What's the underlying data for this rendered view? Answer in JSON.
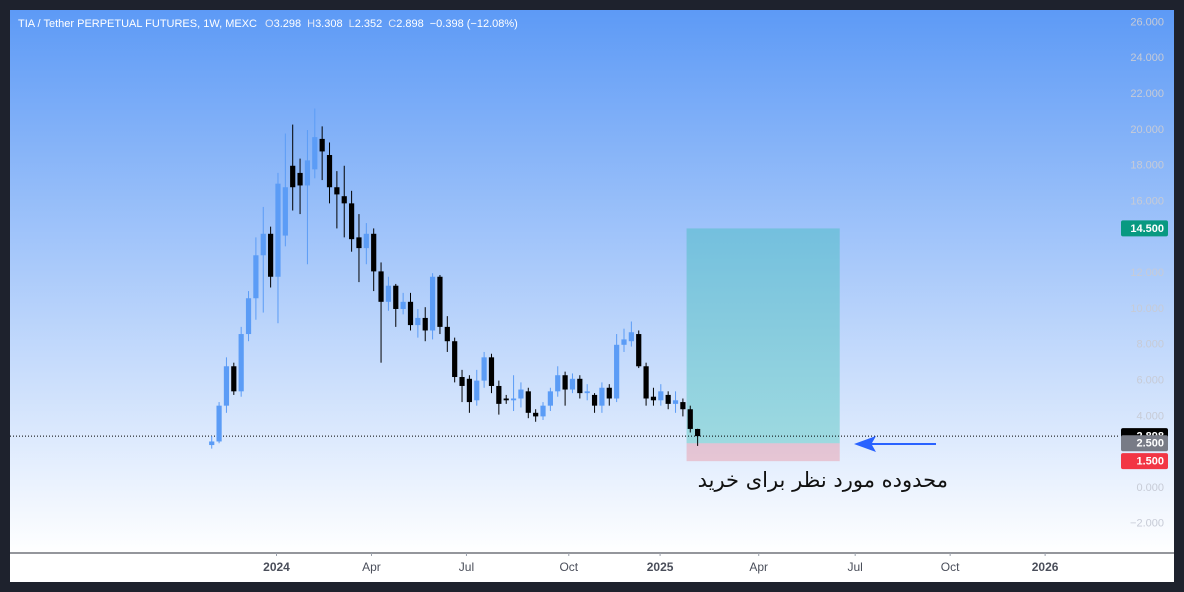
{
  "chart_data": {
    "type": "candlestick",
    "title": "TIA / Tether PERPETUAL FUTURES, 1W, MEXC",
    "legend_values": [
      {
        "label": "O",
        "text": "3.298"
      },
      {
        "label": "H",
        "text": "3.308"
      },
      {
        "label": "L",
        "text": "2.352"
      },
      {
        "label": "C",
        "text": "2.898"
      }
    ],
    "change": "−0.398 (−12.08%)",
    "x": [
      0,
      1,
      2,
      3,
      4,
      5,
      6,
      7,
      8,
      9,
      10,
      11,
      12,
      13,
      14,
      15,
      16,
      17,
      18,
      19,
      20,
      21,
      22,
      23,
      24,
      25,
      26,
      27,
      28,
      29,
      30,
      31,
      32,
      33,
      34,
      35,
      36,
      37,
      38,
      39,
      40,
      41,
      42,
      43,
      44,
      45,
      46,
      47,
      48,
      49,
      50,
      51,
      52,
      53,
      54,
      55,
      56,
      57,
      58,
      59,
      60,
      61,
      62,
      63,
      64,
      65,
      66
    ],
    "open": [
      2.4,
      2.6,
      4.6,
      6.8,
      5.4,
      8.6,
      10.6,
      13.0,
      14.2,
      11.8,
      14.1,
      18.0,
      17.6,
      16.9,
      17.8,
      19.5,
      18.6,
      16.8,
      16.3,
      15.9,
      14.0,
      13.4,
      14.2,
      12.1,
      10.4,
      11.3,
      10.0,
      10.4,
      9.1,
      9.5,
      8.8,
      11.8,
      9.0,
      8.2,
      6.2,
      6.1,
      4.9,
      6.0,
      7.3,
      5.7,
      5.0,
      4.9,
      5.0,
      5.4,
      4.2,
      4.0,
      4.6,
      5.4,
      6.3,
      5.5,
      6.1,
      5.3,
      5.2,
      4.6,
      5.6,
      5.0,
      8.0,
      8.2,
      8.6,
      6.8,
      5.1,
      4.9,
      5.2,
      4.7,
      4.8,
      4.4,
      3.298
    ],
    "high": [
      2.9,
      4.8,
      7.3,
      7.0,
      9.0,
      11.0,
      14.0,
      15.7,
      14.6,
      17.6,
      19.8,
      20.3,
      18.4,
      20.0,
      21.2,
      20.2,
      19.3,
      17.7,
      18.0,
      16.6,
      15.3,
      14.8,
      14.5,
      12.6,
      11.8,
      11.4,
      10.9,
      10.9,
      10.0,
      10.1,
      12.0,
      11.9,
      9.6,
      8.4,
      6.6,
      6.3,
      6.6,
      7.6,
      7.5,
      6.0,
      5.2,
      6.3,
      5.9,
      5.6,
      4.4,
      4.8,
      5.6,
      6.8,
      6.5,
      6.4,
      6.3,
      5.8,
      5.3,
      5.9,
      5.8,
      8.6,
      8.9,
      9.3,
      8.8,
      7.0,
      5.6,
      5.8,
      5.4,
      5.4,
      5.0,
      4.6,
      3.308
    ],
    "low": [
      2.2,
      2.5,
      4.2,
      5.2,
      5.1,
      8.2,
      9.4,
      9.8,
      11.2,
      9.2,
      13.5,
      15.5,
      15.3,
      12.5,
      17.3,
      17.2,
      15.9,
      14.5,
      14.0,
      13.2,
      11.5,
      12.5,
      11.0,
      7.0,
      9.9,
      9.0,
      9.7,
      8.8,
      8.4,
      8.2,
      8.3,
      8.6,
      7.6,
      5.9,
      4.8,
      4.2,
      4.6,
      5.6,
      5.3,
      4.1,
      4.7,
      4.3,
      4.5,
      3.9,
      3.7,
      3.8,
      4.3,
      5.1,
      4.6,
      5.3,
      5.0,
      4.9,
      4.2,
      4.2,
      4.6,
      4.8,
      7.6,
      7.9,
      6.7,
      4.6,
      4.6,
      4.6,
      4.4,
      4.2,
      4.0,
      3.1,
      2.352
    ],
    "close": [
      2.6,
      4.6,
      6.8,
      5.4,
      8.6,
      10.6,
      13.0,
      14.2,
      11.8,
      17.0,
      16.8,
      16.8,
      16.9,
      18.3,
      19.6,
      18.8,
      16.8,
      16.4,
      15.9,
      13.9,
      13.4,
      14.2,
      12.1,
      10.4,
      11.3,
      10.0,
      10.4,
      9.1,
      9.5,
      8.8,
      11.8,
      9.0,
      8.2,
      6.2,
      5.7,
      4.8,
      6.0,
      7.3,
      5.7,
      4.7,
      4.9,
      5.0,
      5.5,
      4.2,
      4.0,
      4.6,
      5.4,
      6.3,
      5.5,
      6.1,
      5.3,
      5.4,
      4.6,
      5.6,
      5.0,
      8.0,
      8.3,
      8.7,
      6.8,
      5.0,
      4.9,
      5.4,
      4.7,
      4.9,
      4.4,
      3.3,
      2.898
    ],
    "up_color": "#5b9cf6",
    "down_color": "#000000",
    "xlim": [
      -27.4,
      123.1
    ],
    "xticks": [
      {
        "value": 8.8,
        "label": "2024"
      },
      {
        "value": 21.7,
        "label": "Apr"
      },
      {
        "value": 34.6,
        "label": "Jul"
      },
      {
        "value": 48.5,
        "label": "Oct"
      },
      {
        "value": 60.9,
        "label": "2025"
      },
      {
        "value": 74.3,
        "label": "Apr"
      },
      {
        "value": 87.4,
        "label": "Jul"
      },
      {
        "value": 100.3,
        "label": "Oct"
      },
      {
        "value": 113.2,
        "label": "2026"
      }
    ],
    "ylim": [
      -3.63,
      26.7
    ],
    "yticks": [
      {
        "value": 26,
        "label": "26.000"
      },
      {
        "value": 24,
        "label": "24.000"
      },
      {
        "value": 22,
        "label": "22.000"
      },
      {
        "value": 20,
        "label": "20.000"
      },
      {
        "value": 18,
        "label": "18.000"
      },
      {
        "value": 16,
        "label": "16.000"
      },
      {
        "value": 12,
        "label": "12.000"
      },
      {
        "value": 10,
        "label": "10.000"
      },
      {
        "value": 8,
        "label": "8.000"
      },
      {
        "value": 6,
        "label": "6.000"
      },
      {
        "value": 4,
        "label": "4.000"
      },
      {
        "value": 0,
        "label": "0.000"
      },
      {
        "value": -2,
        "label": "−2.000"
      }
    ],
    "last_price": {
      "value": 2.898,
      "label": "2.898"
    },
    "position": {
      "x": [
        64.5,
        85.3
      ],
      "target": {
        "value": 14.5,
        "label": "14.500"
      },
      "entry": {
        "value": 2.5,
        "label": "2.500"
      },
      "stop": {
        "value": 1.5,
        "label": "1.500"
      }
    },
    "annotation": "محدوده مورد نظر برای خرید"
  }
}
